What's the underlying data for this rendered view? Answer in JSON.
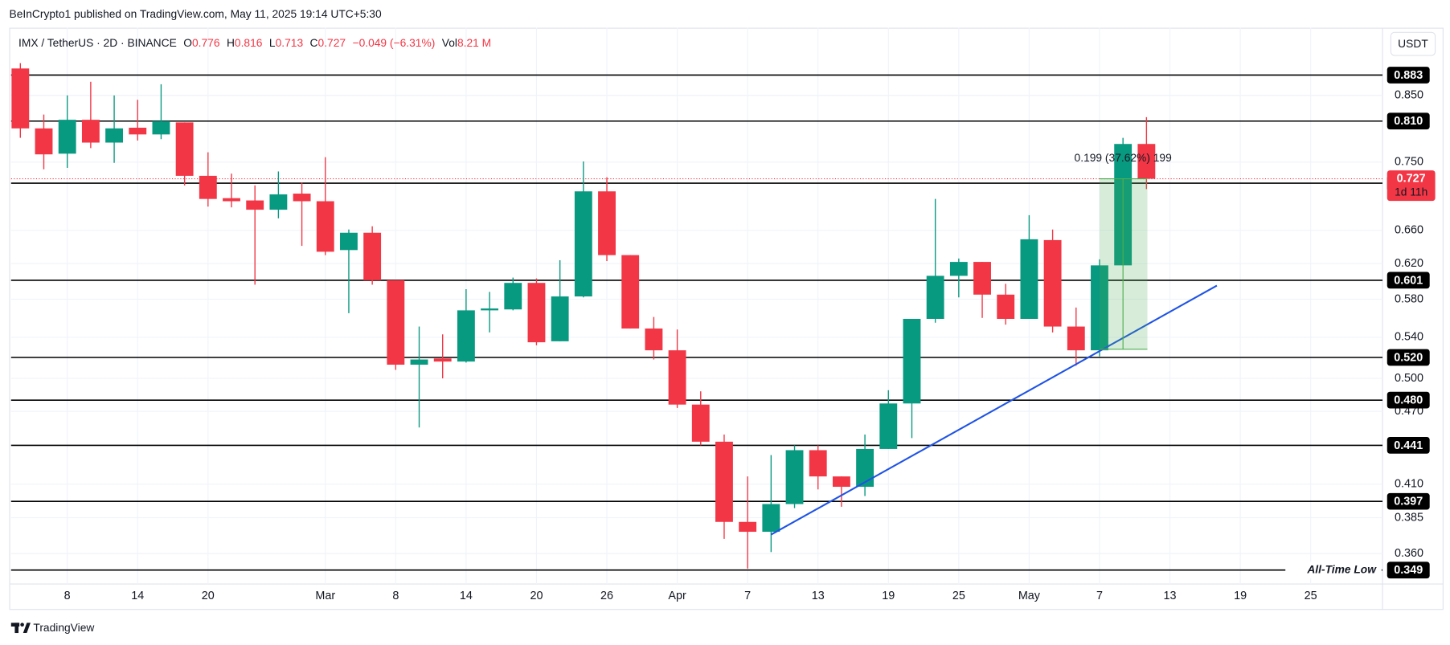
{
  "header": {
    "publisher": "BeInCrypto1 published on TradingView.com, May 11, 2025 19:14 UTC+5:30"
  },
  "chart_data": {
    "type": "candlestick",
    "symbol": "IMX / TetherUS · 2D · BINANCE",
    "ohlc_legend": {
      "open_label": "O",
      "open": 0.776,
      "high_label": "H",
      "high": 0.816,
      "low_label": "L",
      "low": 0.713,
      "close_label": "C",
      "close": 0.727,
      "change": "−0.049 (−6.31%)",
      "volume_label": "Vol",
      "volume": "8.21 M"
    },
    "categories": [
      null,
      null,
      "8",
      null,
      null,
      "14",
      null,
      null,
      "20",
      null,
      null,
      null,
      null,
      "Mar",
      null,
      null,
      "8",
      null,
      null,
      "14",
      null,
      null,
      "20",
      null,
      null,
      "26",
      null,
      null,
      "Apr",
      null,
      null,
      "7",
      null,
      null,
      "13",
      null,
      null,
      "19",
      null,
      null,
      "25",
      null,
      null,
      "May",
      null,
      null,
      "7",
      null,
      null,
      "13",
      null,
      null,
      "19",
      null,
      null,
      "25",
      null,
      null,
      null
    ],
    "open": [
      0.894,
      0.799,
      0.762,
      0.812,
      0.778,
      0.8,
      0.79,
      0.808,
      0.731,
      0.701,
      0.698,
      0.686,
      0.707,
      0.697,
      0.636,
      0.657,
      0.601,
      0.513,
      0.519,
      0.516,
      0.568,
      0.569,
      0.598,
      0.536,
      0.583,
      0.71,
      0.63,
      0.549,
      0.527,
      0.476,
      0.444,
      0.382,
      0.375,
      0.395,
      0.437,
      0.416,
      0.408,
      0.438,
      0.477,
      0.559,
      0.606,
      0.622,
      0.585,
      0.559,
      0.648,
      0.551,
      0.527,
      0.618,
      0.776,
      null,
      null,
      null,
      null,
      null,
      null,
      null,
      null,
      null,
      null
    ],
    "high": [
      0.903,
      0.82,
      0.85,
      0.872,
      0.85,
      0.843,
      0.868,
      0.808,
      0.764,
      0.734,
      0.718,
      0.737,
      0.722,
      0.757,
      0.661,
      0.665,
      0.601,
      0.551,
      0.543,
      0.591,
      0.588,
      0.604,
      0.603,
      0.624,
      0.751,
      0.729,
      0.63,
      0.561,
      0.548,
      0.488,
      0.45,
      0.416,
      0.433,
      0.441,
      0.441,
      0.416,
      0.45,
      0.489,
      0.559,
      0.7,
      0.626,
      0.622,
      0.597,
      0.679,
      0.661,
      0.571,
      0.625,
      0.785,
      0.816,
      null,
      null,
      null,
      null,
      null,
      null,
      null,
      null,
      null,
      null
    ],
    "low": [
      0.785,
      0.74,
      0.742,
      0.77,
      0.749,
      0.781,
      0.783,
      0.718,
      0.69,
      0.689,
      0.596,
      0.675,
      0.641,
      0.63,
      0.565,
      0.596,
      0.508,
      0.456,
      0.5,
      0.515,
      0.545,
      0.568,
      0.532,
      0.536,
      0.582,
      0.623,
      0.549,
      0.518,
      0.473,
      0.441,
      0.37,
      0.35,
      0.361,
      0.392,
      0.406,
      0.393,
      0.401,
      0.438,
      0.447,
      0.555,
      0.582,
      0.56,
      0.553,
      0.559,
      0.545,
      0.512,
      0.521,
      0.618,
      0.713,
      null,
      null,
      null,
      null,
      null,
      null,
      null,
      null,
      null,
      null
    ],
    "close": [
      0.799,
      0.761,
      0.812,
      0.778,
      0.799,
      0.79,
      0.81,
      0.731,
      0.7,
      0.697,
      0.686,
      0.706,
      0.697,
      0.634,
      0.657,
      0.601,
      0.513,
      0.518,
      0.516,
      0.568,
      0.57,
      0.598,
      0.535,
      0.583,
      0.71,
      0.63,
      0.549,
      0.527,
      0.476,
      0.444,
      0.382,
      0.375,
      0.395,
      0.437,
      0.416,
      0.408,
      0.438,
      0.477,
      0.559,
      0.606,
      0.622,
      0.585,
      0.559,
      0.649,
      0.551,
      0.527,
      0.618,
      0.776,
      0.727,
      null,
      null,
      null,
      null,
      null,
      null,
      null,
      null,
      null,
      null
    ],
    "up_color": "#089981",
    "down_color": "#f23645",
    "log_scale": true,
    "grid": true,
    "ylim": [
      0.34,
      0.965
    ],
    "yticks": [
      {
        "value": 0.85,
        "label": "0.850"
      },
      {
        "value": 0.75,
        "label": "0.750"
      },
      {
        "value": 0.66,
        "label": "0.660"
      },
      {
        "value": 0.62,
        "label": "0.620"
      },
      {
        "value": 0.58,
        "label": "0.580"
      },
      {
        "value": 0.54,
        "label": "0.540"
      },
      {
        "value": 0.5,
        "label": "0.500"
      },
      {
        "value": 0.47,
        "label": "0.470"
      },
      {
        "value": 0.41,
        "label": "0.410"
      },
      0.385,
      {
        "value": 0.36,
        "label": "0.360"
      }
    ],
    "axis_unit": "USDT",
    "levels": [
      0.883,
      {
        "value": 0.81,
        "label": "0.810"
      },
      0.721,
      0.601,
      {
        "value": 0.52,
        "label": "0.520"
      },
      {
        "value": 0.48,
        "label": "0.480"
      },
      0.441,
      0.397,
      0.349
    ],
    "level_color": "#000000",
    "all_time_low_note": "All-Time Low",
    "last_price": {
      "value": 0.727,
      "countdown": "1d 11h",
      "color": "#f23645"
    },
    "trendline": {
      "color": "#1e53e5",
      "values": [
        0.373,
        0.595
      ]
    },
    "measure": {
      "text": "0.199 (37.62%) 199",
      "color": "#4caf50",
      "values": [
        0.528,
        0.727
      ]
    }
  },
  "footer": {
    "brand": "TradingView"
  }
}
